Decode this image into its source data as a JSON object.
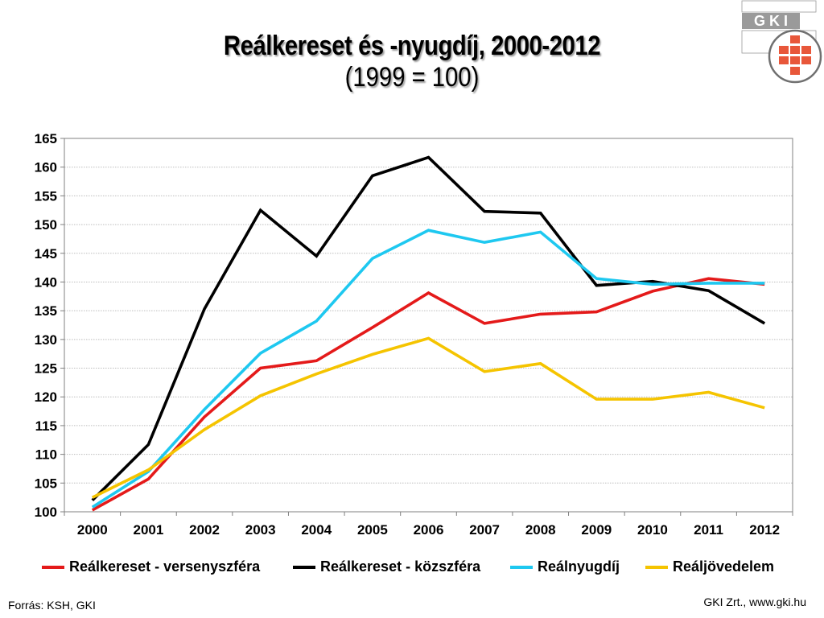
{
  "title": "Reálkereset és -nyugdíj, 2000-2012",
  "subtitle": "(1999 = 100)",
  "logo": {
    "text": "G K I"
  },
  "source": "Forrás: KSH, GKI",
  "credit": "GKI Zrt., www.gki.hu",
  "chart_data": {
    "type": "line",
    "categories": [
      "2000",
      "2001",
      "2002",
      "2003",
      "2004",
      "2005",
      "2006",
      "2007",
      "2008",
      "2009",
      "2010",
      "2011",
      "2012"
    ],
    "ylim": [
      100,
      165
    ],
    "yticks": [
      100,
      105,
      110,
      115,
      120,
      125,
      130,
      135,
      140,
      145,
      150,
      155,
      160,
      165
    ],
    "grid": true,
    "legend_position": "bottom",
    "series": [
      {
        "name": "Reálkereset - versenyszféra",
        "color": "#e41a1a",
        "values": [
          100.3,
          105.7,
          116.5,
          125.0,
          126.3,
          132.1,
          138.1,
          132.8,
          134.4,
          134.8,
          138.4,
          140.6,
          139.6
        ]
      },
      {
        "name": "Reálkereset - közszféra",
        "color": "#000000",
        "values": [
          102.0,
          111.7,
          135.3,
          152.5,
          144.5,
          158.5,
          161.7,
          152.3,
          152.0,
          139.4,
          140.1,
          138.5,
          132.8
        ]
      },
      {
        "name": "Reálnyugdíj",
        "color": "#1ec8f0",
        "values": [
          100.8,
          107.0,
          117.8,
          127.6,
          133.2,
          144.1,
          149.0,
          146.9,
          148.7,
          140.6,
          139.6,
          139.8,
          139.8
        ]
      },
      {
        "name": "Reáljövedelem",
        "color": "#f5c400",
        "values": [
          102.5,
          107.3,
          114.3,
          120.2,
          124.0,
          127.4,
          130.2,
          124.4,
          125.8,
          119.6,
          119.6,
          120.8,
          118.1
        ]
      }
    ]
  }
}
